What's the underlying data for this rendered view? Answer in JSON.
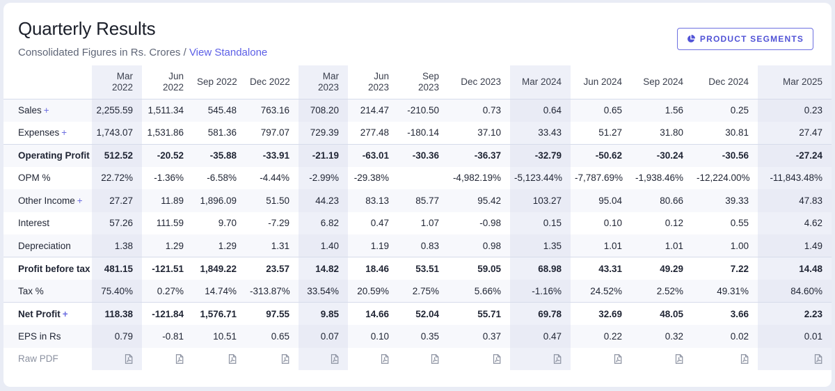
{
  "header": {
    "title": "Quarterly Results",
    "subtitle": "Consolidated Figures in Rs. Crores",
    "separator": "/",
    "view_standalone": "View Standalone",
    "segments_button": "PRODUCT SEGMENTS"
  },
  "columns": [
    {
      "line1": "Mar",
      "line2": "2022",
      "highlight": true
    },
    {
      "line1": "Jun",
      "line2": "2022",
      "highlight": false
    },
    {
      "line1": "Sep 2022",
      "line2": "",
      "highlight": false
    },
    {
      "line1": "Dec 2022",
      "line2": "",
      "highlight": false
    },
    {
      "line1": "Mar",
      "line2": "2023",
      "highlight": true
    },
    {
      "line1": "Jun",
      "line2": "2023",
      "highlight": false
    },
    {
      "line1": "Sep",
      "line2": "2023",
      "highlight": false
    },
    {
      "line1": "Dec 2023",
      "line2": "",
      "highlight": false
    },
    {
      "line1": "Mar 2024",
      "line2": "",
      "highlight": true
    },
    {
      "line1": "Jun 2024",
      "line2": "",
      "highlight": false
    },
    {
      "line1": "Sep 2024",
      "line2": "",
      "highlight": false
    },
    {
      "line1": "Dec 2024",
      "line2": "",
      "highlight": false
    },
    {
      "line1": "Mar 2025",
      "line2": "",
      "highlight": true
    }
  ],
  "rows": [
    {
      "label": "Sales",
      "expandable": true,
      "bold": false,
      "striped": true,
      "border": false,
      "values": [
        "2,255.59",
        "1,511.34",
        "545.48",
        "763.16",
        "708.20",
        "214.47",
        "-210.50",
        "0.73",
        "0.64",
        "0.65",
        "1.56",
        "0.25",
        "0.23"
      ]
    },
    {
      "label": "Expenses",
      "expandable": true,
      "bold": false,
      "striped": false,
      "border": false,
      "values": [
        "1,743.07",
        "1,531.86",
        "581.36",
        "797.07",
        "729.39",
        "277.48",
        "-180.14",
        "37.10",
        "33.43",
        "51.27",
        "31.80",
        "30.81",
        "27.47"
      ]
    },
    {
      "label": "Operating Profit",
      "expandable": false,
      "bold": true,
      "striped": true,
      "border": true,
      "values": [
        "512.52",
        "-20.52",
        "-35.88",
        "-33.91",
        "-21.19",
        "-63.01",
        "-30.36",
        "-36.37",
        "-32.79",
        "-50.62",
        "-30.24",
        "-30.56",
        "-27.24"
      ]
    },
    {
      "label": "OPM %",
      "expandable": false,
      "bold": false,
      "striped": false,
      "border": false,
      "values": [
        "22.72%",
        "-1.36%",
        "-6.58%",
        "-4.44%",
        "-2.99%",
        "-29.38%",
        "",
        "-4,982.19%",
        "-5,123.44%",
        "-7,787.69%",
        "-1,938.46%",
        "-12,224.00%",
        "-11,843.48%"
      ]
    },
    {
      "label": "Other Income",
      "expandable": true,
      "bold": false,
      "striped": true,
      "border": false,
      "values": [
        "27.27",
        "11.89",
        "1,896.09",
        "51.50",
        "44.23",
        "83.13",
        "85.77",
        "95.42",
        "103.27",
        "95.04",
        "80.66",
        "39.33",
        "47.83"
      ]
    },
    {
      "label": "Interest",
      "expandable": false,
      "bold": false,
      "striped": false,
      "border": false,
      "values": [
        "57.26",
        "111.59",
        "9.70",
        "-7.29",
        "6.82",
        "0.47",
        "1.07",
        "-0.98",
        "0.15",
        "0.10",
        "0.12",
        "0.55",
        "4.62"
      ]
    },
    {
      "label": "Depreciation",
      "expandable": false,
      "bold": false,
      "striped": true,
      "border": false,
      "values": [
        "1.38",
        "1.29",
        "1.29",
        "1.31",
        "1.40",
        "1.19",
        "0.83",
        "0.98",
        "1.35",
        "1.01",
        "1.01",
        "1.00",
        "1.49"
      ]
    },
    {
      "label": "Profit before tax",
      "expandable": false,
      "bold": true,
      "striped": false,
      "border": true,
      "values": [
        "481.15",
        "-121.51",
        "1,849.22",
        "23.57",
        "14.82",
        "18.46",
        "53.51",
        "59.05",
        "68.98",
        "43.31",
        "49.29",
        "7.22",
        "14.48"
      ]
    },
    {
      "label": "Tax %",
      "expandable": false,
      "bold": false,
      "striped": true,
      "border": false,
      "values": [
        "75.40%",
        "0.27%",
        "14.74%",
        "-313.87%",
        "33.54%",
        "20.59%",
        "2.75%",
        "5.66%",
        "-1.16%",
        "24.52%",
        "2.52%",
        "49.31%",
        "84.60%"
      ]
    },
    {
      "label": "Net Profit",
      "expandable": true,
      "bold": true,
      "striped": false,
      "border": true,
      "values": [
        "118.38",
        "-121.84",
        "1,576.71",
        "97.55",
        "9.85",
        "14.66",
        "52.04",
        "55.71",
        "69.78",
        "32.69",
        "48.05",
        "3.66",
        "2.23"
      ]
    },
    {
      "label": "EPS in Rs",
      "expandable": false,
      "bold": false,
      "striped": true,
      "border": false,
      "values": [
        "0.79",
        "-0.81",
        "10.51",
        "0.65",
        "0.07",
        "0.10",
        "0.35",
        "0.37",
        "0.47",
        "0.22",
        "0.32",
        "0.02",
        "0.01"
      ]
    }
  ],
  "raw_pdf": {
    "label": "Raw PDF",
    "icon": "pdf-file-icon"
  },
  "colors": {
    "accent": "#5b5ee6",
    "highlight_col": "#eef0f8",
    "stripe": "#f7f8fc"
  }
}
